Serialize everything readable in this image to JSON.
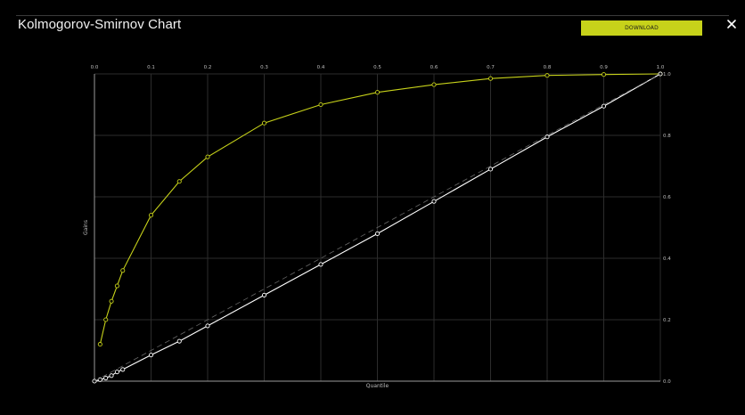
{
  "header": {
    "title": "Kolmogorov-Smirnov Chart",
    "download_label": "DOWNLOAD",
    "close_icon": "close-icon"
  },
  "colors": {
    "background": "#000000",
    "accent": "#c7d21a",
    "baseline": "#ffffff",
    "grid": "#2c2c2c"
  },
  "chart_data": {
    "type": "line",
    "title": "",
    "xlabel": "Quantile",
    "ylabel": "Gains",
    "xlim": [
      0,
      1
    ],
    "ylim": [
      0,
      1
    ],
    "x_ticks": [
      "0.0",
      "0.1",
      "0.2",
      "0.3",
      "0.4",
      "0.5",
      "0.6",
      "0.7",
      "0.8",
      "0.9",
      "1.0"
    ],
    "y_ticks": [
      "0.0",
      "0.2",
      "0.4",
      "0.6",
      "0.8",
      "1.0"
    ],
    "grid": true,
    "legend": "none",
    "series": [
      {
        "x": [
          0.01,
          0.02,
          0.03,
          0.04,
          0.05,
          0.1,
          0.15,
          0.2,
          0.3,
          0.4,
          0.5,
          0.6,
          0.7,
          0.8,
          0.9,
          1.0
        ],
        "values": [
          0.12,
          0.2,
          0.26,
          0.31,
          0.36,
          0.54,
          0.65,
          0.73,
          0.84,
          0.9,
          0.94,
          0.965,
          0.985,
          0.995,
          0.998,
          1.0
        ],
        "color": "#c7d21a"
      },
      {
        "x": [
          0.0,
          0.01,
          0.02,
          0.03,
          0.04,
          0.05,
          0.1,
          0.15,
          0.2,
          0.3,
          0.4,
          0.5,
          0.6,
          0.7,
          0.8,
          0.9,
          1.0
        ],
        "values": [
          0.0,
          0.005,
          0.01,
          0.018,
          0.03,
          0.038,
          0.085,
          0.13,
          0.18,
          0.28,
          0.38,
          0.48,
          0.585,
          0.69,
          0.795,
          0.895,
          1.0
        ],
        "color": "#ffffff"
      },
      {
        "x": [
          0,
          1
        ],
        "values": [
          0,
          1
        ],
        "color": "#666666",
        "dashed": true
      }
    ]
  }
}
